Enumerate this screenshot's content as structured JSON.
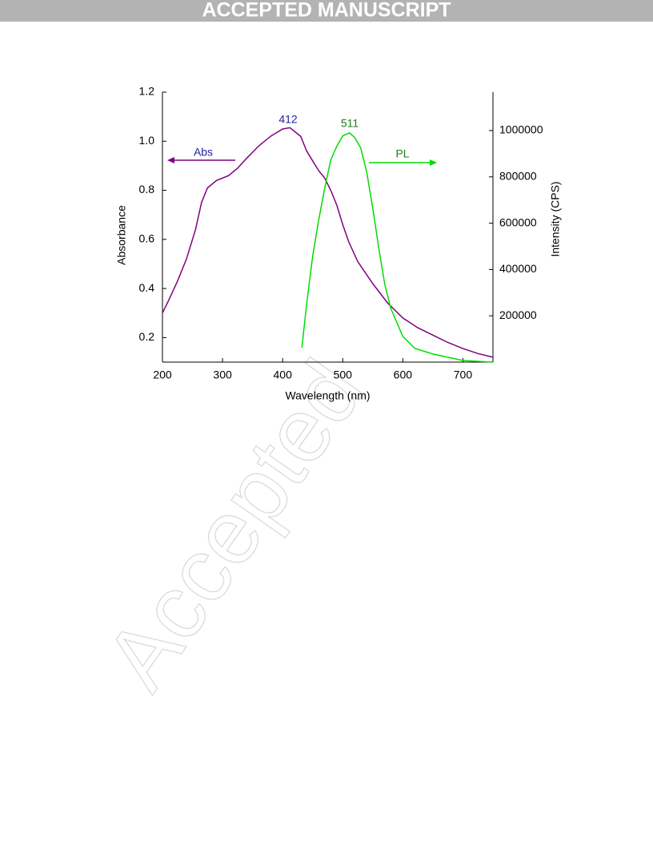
{
  "header": {
    "title": "ACCEPTED MANUSCRIPT"
  },
  "watermark": "Accepted",
  "chart_data": {
    "type": "line",
    "x_label": "Wavelength (nm)",
    "y_label": "Absorbance",
    "y2_label": "Intensity (CPS)",
    "xlim": [
      200,
      750
    ],
    "xticks": [
      200,
      300,
      400,
      500,
      600,
      700
    ],
    "ylim": [
      0.1,
      1.2
    ],
    "yticks": [
      0.2,
      0.4,
      0.6,
      0.8,
      {
        "value": 1,
        "label": "1.0"
      },
      1.2
    ],
    "y2lim": [
      0,
      1166000
    ],
    "y2ticks": [
      200000,
      400000,
      600000,
      800000,
      1000000
    ],
    "annotations": [
      "412",
      "511",
      "Abs",
      "PL"
    ],
    "series": [
      {
        "name": "Abs",
        "color": "#800080",
        "x": [
          200,
          210,
          225,
          240,
          255,
          265,
          275,
          290,
          310,
          325,
          340,
          360,
          380,
          400,
          412,
          430,
          440,
          450,
          460,
          470,
          480,
          490,
          500,
          510,
          525,
          550,
          575,
          600,
          625,
          650,
          675,
          700,
          725,
          750
        ],
        "values": [
          0.3,
          0.35,
          0.43,
          0.52,
          0.64,
          0.75,
          0.81,
          0.84,
          0.86,
          0.89,
          0.93,
          0.98,
          1.02,
          1.05,
          1.055,
          1.02,
          0.96,
          0.92,
          0.88,
          0.85,
          0.8,
          0.74,
          0.66,
          0.59,
          0.51,
          0.42,
          0.34,
          0.28,
          0.24,
          0.21,
          0.18,
          0.155,
          0.135,
          0.12
        ]
      },
      {
        "name": "PL",
        "color": "#00dd00",
        "axis": "y2",
        "x": [
          432,
          440,
          450,
          460,
          470,
          480,
          490,
          500,
          511,
          520,
          530,
          540,
          550,
          560,
          570,
          580,
          600,
          620,
          650,
          700,
          750
        ],
        "values": [
          62000,
          250000,
          457000,
          613000,
          750000,
          873000,
          932000,
          977000,
          990000,
          970000,
          925000,
          820000,
          665000,
          492000,
          336000,
          232000,
          111000,
          59000,
          35000,
          7000,
          0
        ]
      }
    ]
  }
}
